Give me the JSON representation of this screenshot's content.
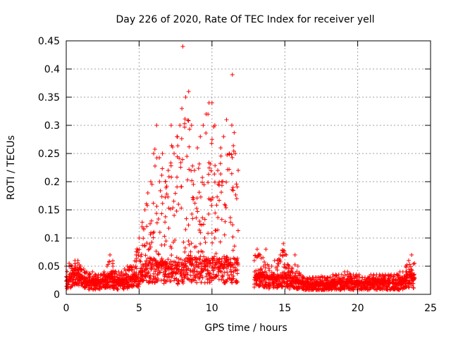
{
  "chart_data": {
    "type": "scatter",
    "title": "Day 226 of 2020, Rate Of TEC Index for receiver yell",
    "xlabel": "GPS time / hours",
    "ylabel": "ROTI / TECUs",
    "xlim": [
      0,
      25
    ],
    "ylim": [
      0,
      0.45
    ],
    "x_ticks": [
      0,
      5,
      10,
      15,
      20,
      25
    ],
    "y_ticks": [
      0,
      0.05,
      0.1,
      0.15,
      0.2,
      0.25,
      0.3,
      0.35,
      0.4,
      0.45
    ],
    "grid": true,
    "marker": "+",
    "series": [
      {
        "name": "ROTI",
        "color": "#ff0000",
        "marker": "+",
        "segments": [
          {
            "x": [
              0.0,
              0.2,
              0.4,
              0.6,
              0.8,
              1.0,
              1.2,
              1.4,
              1.6,
              1.8,
              2.0,
              2.2,
              2.4,
              2.6,
              2.8,
              3.0,
              3.2,
              3.4,
              3.6,
              3.8,
              4.0,
              4.2,
              4.4,
              4.6,
              4.8,
              5.0,
              5.2,
              5.4,
              5.6,
              5.8,
              6.0,
              6.2,
              6.4,
              6.6,
              6.8,
              7.0,
              7.2,
              7.4,
              7.6,
              7.8,
              8.0,
              8.2,
              8.4,
              8.6,
              8.8,
              9.0,
              9.2,
              9.4,
              9.6,
              9.8,
              10.0,
              10.2,
              10.4,
              10.6,
              10.8,
              11.0,
              11.2,
              11.4,
              11.6,
              11.8
            ],
            "baseline": [
              0.02,
              0.025,
              0.03,
              0.035,
              0.035,
              0.03,
              0.025,
              0.02,
              0.02,
              0.02,
              0.02,
              0.02,
              0.02,
              0.022,
              0.025,
              0.03,
              0.025,
              0.022,
              0.02,
              0.022,
              0.022,
              0.025,
              0.025,
              0.028,
              0.03,
              0.035,
              0.04,
              0.045,
              0.05,
              0.05,
              0.05,
              0.05,
              0.05,
              0.048,
              0.045,
              0.045,
              0.045,
              0.045,
              0.045,
              0.045,
              0.045,
              0.05,
              0.05,
              0.05,
              0.05,
              0.05,
              0.05,
              0.05,
              0.05,
              0.05,
              0.05,
              0.05,
              0.05,
              0.05,
              0.05,
              0.05,
              0.05,
              0.05,
              0.05,
              0.05
            ],
            "peak": [
              0.05,
              0.055,
              0.05,
              0.06,
              0.06,
              0.05,
              0.045,
              0.04,
              0.035,
              0.04,
              0.035,
              0.035,
              0.035,
              0.04,
              0.05,
              0.07,
              0.05,
              0.04,
              0.04,
              0.04,
              0.045,
              0.05,
              0.05,
              0.05,
              0.07,
              0.1,
              0.12,
              0.15,
              0.18,
              0.2,
              0.25,
              0.3,
              0.2,
              0.25,
              0.2,
              0.22,
              0.3,
              0.25,
              0.28,
              0.3,
              0.44,
              0.35,
              0.36,
              0.3,
              0.22,
              0.26,
              0.28,
              0.3,
              0.32,
              0.34,
              0.34,
              0.3,
              0.22,
              0.26,
              0.28,
              0.31,
              0.25,
              0.39,
              0.25,
              0.22
            ]
          },
          {
            "x": [
              12.9,
              13.1,
              13.3,
              13.5,
              13.7,
              13.9,
              14.1,
              14.3,
              14.5,
              14.7,
              14.9,
              15.1,
              15.3,
              15.5,
              15.7,
              15.9,
              16.1,
              16.3,
              16.5,
              16.7,
              16.9,
              17.1,
              17.3,
              17.5,
              17.7,
              17.9,
              18.1,
              18.3,
              18.5,
              18.7,
              18.9,
              19.1,
              19.3,
              19.5,
              19.7,
              19.9,
              20.1,
              20.3,
              20.5,
              20.7,
              20.9,
              21.1,
              21.3,
              21.5,
              21.7,
              21.9,
              22.1,
              22.3,
              22.5,
              22.7,
              22.9,
              23.1,
              23.3,
              23.5,
              23.7,
              23.9
            ],
            "baseline": [
              0.025,
              0.03,
              0.03,
              0.03,
              0.025,
              0.025,
              0.025,
              0.025,
              0.025,
              0.03,
              0.03,
              0.03,
              0.025,
              0.022,
              0.02,
              0.02,
              0.02,
              0.018,
              0.016,
              0.016,
              0.016,
              0.016,
              0.016,
              0.016,
              0.016,
              0.016,
              0.018,
              0.018,
              0.018,
              0.018,
              0.02,
              0.02,
              0.02,
              0.02,
              0.018,
              0.018,
              0.018,
              0.018,
              0.018,
              0.018,
              0.02,
              0.02,
              0.02,
              0.02,
              0.02,
              0.02,
              0.02,
              0.02,
              0.02,
              0.02,
              0.02,
              0.02,
              0.025,
              0.03,
              0.03,
              0.025
            ],
            "peak": [
              0.06,
              0.08,
              0.07,
              0.065,
              0.08,
              0.05,
              0.05,
              0.06,
              0.06,
              0.07,
              0.09,
              0.07,
              0.05,
              0.045,
              0.07,
              0.05,
              0.035,
              0.03,
              0.028,
              0.03,
              0.03,
              0.03,
              0.03,
              0.032,
              0.03,
              0.03,
              0.03,
              0.035,
              0.035,
              0.035,
              0.035,
              0.04,
              0.04,
              0.035,
              0.035,
              0.035,
              0.035,
              0.03,
              0.03,
              0.03,
              0.035,
              0.035,
              0.035,
              0.035,
              0.035,
              0.035,
              0.035,
              0.035,
              0.035,
              0.035,
              0.04,
              0.04,
              0.05,
              0.06,
              0.07,
              0.055
            ]
          }
        ]
      }
    ]
  }
}
